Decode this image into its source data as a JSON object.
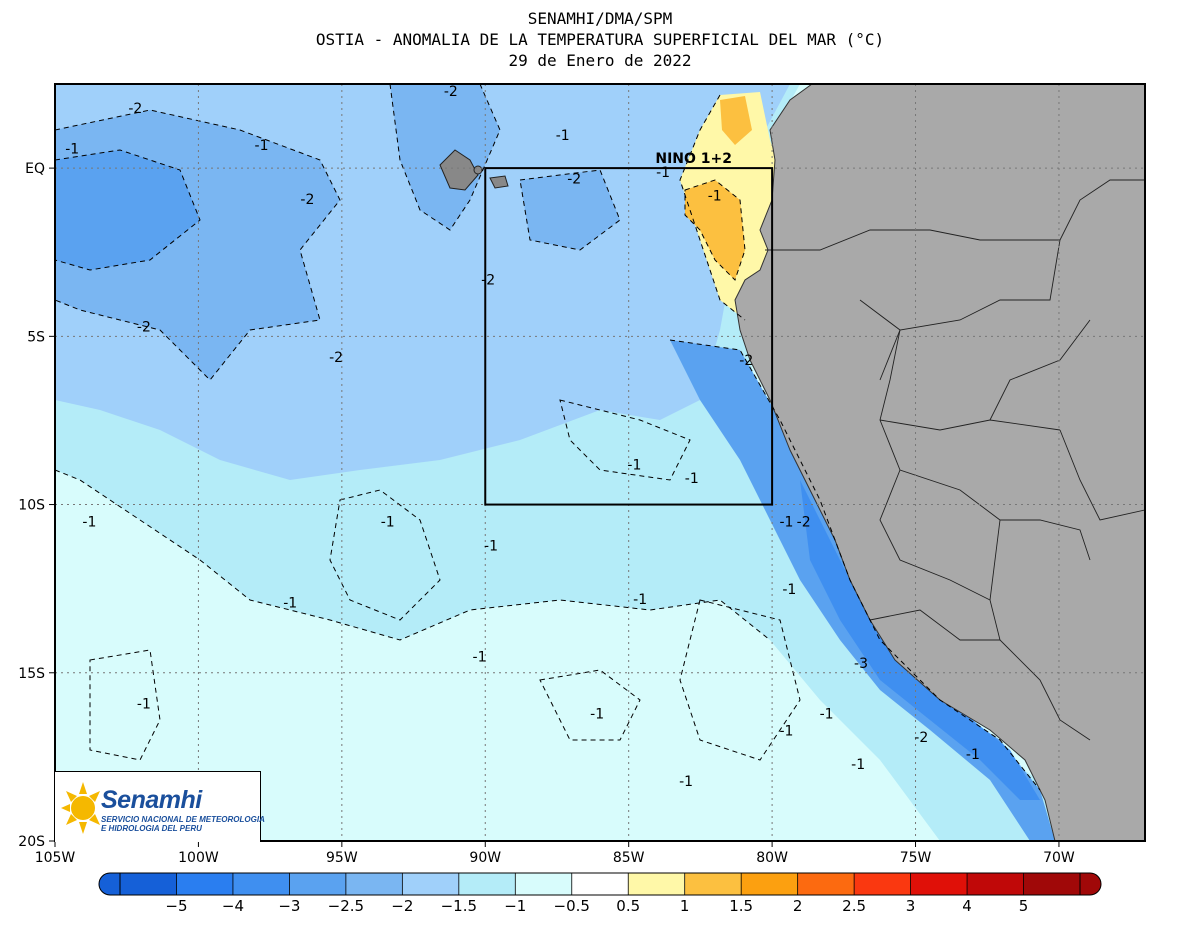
{
  "header": {
    "line1": "SENAMHI/DMA/SPM",
    "line2": "OSTIA - ANOMALIA DE LA TEMPERATURA SUPERFICIAL DEL MAR (°C)",
    "line3": "29 de Enero de 2022"
  },
  "map": {
    "lon_range": [
      -105,
      -67
    ],
    "lat_range": [
      -20,
      2.5
    ],
    "land_color": "#a9a9a9",
    "box_label": "NINO 1+2",
    "box": {
      "lon": [
        -90,
        -80
      ],
      "lat": [
        -10,
        0
      ]
    },
    "x_ticks": [
      {
        "lon": -105,
        "label": "105W"
      },
      {
        "lon": -100,
        "label": "100W"
      },
      {
        "lon": -95,
        "label": "95W"
      },
      {
        "lon": -90,
        "label": "90W"
      },
      {
        "lon": -85,
        "label": "85W"
      },
      {
        "lon": -80,
        "label": "80W"
      },
      {
        "lon": -75,
        "label": "75W"
      },
      {
        "lon": -70,
        "label": "70W"
      }
    ],
    "y_ticks": [
      {
        "lat": 0,
        "label": "EQ"
      },
      {
        "lat": -5,
        "label": "5S"
      },
      {
        "lat": -10,
        "label": "10S"
      },
      {
        "lat": -15,
        "label": "15S"
      },
      {
        "lat": -20,
        "label": "20S"
      }
    ],
    "contour_labels": [
      {
        "text": "-2",
        "lon": -102.2,
        "lat": 1.7
      },
      {
        "text": "-1",
        "lon": -104.4,
        "lat": 0.5
      },
      {
        "text": "-1",
        "lon": -97.8,
        "lat": 0.6
      },
      {
        "text": "-2",
        "lon": -91.2,
        "lat": 2.2
      },
      {
        "text": "-1",
        "lon": -87.3,
        "lat": 0.9
      },
      {
        "text": "-1",
        "lon": -83.8,
        "lat": -0.2
      },
      {
        "text": "-2",
        "lon": -96.2,
        "lat": -1.0
      },
      {
        "text": "-2",
        "lon": -86.9,
        "lat": -0.4
      },
      {
        "text": "-1",
        "lon": -82.0,
        "lat": -0.9
      },
      {
        "text": "-2",
        "lon": -89.9,
        "lat": -3.4
      },
      {
        "text": "-2",
        "lon": -101.9,
        "lat": -4.8
      },
      {
        "text": "-2",
        "lon": -95.2,
        "lat": -5.7
      },
      {
        "text": "-2",
        "lon": -80.9,
        "lat": -5.8
      },
      {
        "text": "-1",
        "lon": -84.8,
        "lat": -8.9
      },
      {
        "text": "-1",
        "lon": -82.8,
        "lat": -9.3
      },
      {
        "text": "-1",
        "lon": -103.8,
        "lat": -10.6
      },
      {
        "text": "-1",
        "lon": -93.4,
        "lat": -10.6
      },
      {
        "text": "-1",
        "lon": -79.5,
        "lat": -10.6
      },
      {
        "text": "-2",
        "lon": -78.9,
        "lat": -10.6
      },
      {
        "text": "-1",
        "lon": -89.8,
        "lat": -11.3
      },
      {
        "text": "-1",
        "lon": -96.8,
        "lat": -13.0
      },
      {
        "text": "-1",
        "lon": -84.6,
        "lat": -12.9
      },
      {
        "text": "-1",
        "lon": -79.4,
        "lat": -12.6
      },
      {
        "text": "-1",
        "lon": -90.2,
        "lat": -14.6
      },
      {
        "text": "-3",
        "lon": -76.9,
        "lat": -14.8
      },
      {
        "text": "-1",
        "lon": -101.9,
        "lat": -16.0
      },
      {
        "text": "-1",
        "lon": -86.1,
        "lat": -16.3
      },
      {
        "text": "-1",
        "lon": -78.1,
        "lat": -16.3
      },
      {
        "text": "-1",
        "lon": -79.5,
        "lat": -16.8
      },
      {
        "text": "-2",
        "lon": -74.8,
        "lat": -17.0
      },
      {
        "text": "-1",
        "lon": -73.0,
        "lat": -17.5
      },
      {
        "text": "-1",
        "lon": -77.0,
        "lat": -17.8
      },
      {
        "text": "-1",
        "lon": -83.0,
        "lat": -18.3
      }
    ]
  },
  "colorbar": {
    "colors": [
      "#1560d8",
      "#2a7ef0",
      "#3f8ff0",
      "#5aa2f0",
      "#7ab6f2",
      "#a0d0fa",
      "#b4ecf8",
      "#d8fcfc",
      "#ffffff",
      "#fff8a8",
      "#fcc040",
      "#fca010",
      "#fc6a10",
      "#fa3810",
      "#e01008",
      "#c00808",
      "#a00808"
    ],
    "labels": [
      "-5",
      "-4",
      "-3",
      "-2.5",
      "-2",
      "-1.5",
      "-1",
      "-0.5",
      "0.5",
      "1",
      "1.5",
      "2",
      "2.5",
      "3",
      "4",
      "5"
    ]
  },
  "logo": {
    "name": "Senamhi",
    "subtitle": "SERVICIO NACIONAL DE METEOROLOGIA\nE HIDROLOGIA DEL PERU"
  }
}
